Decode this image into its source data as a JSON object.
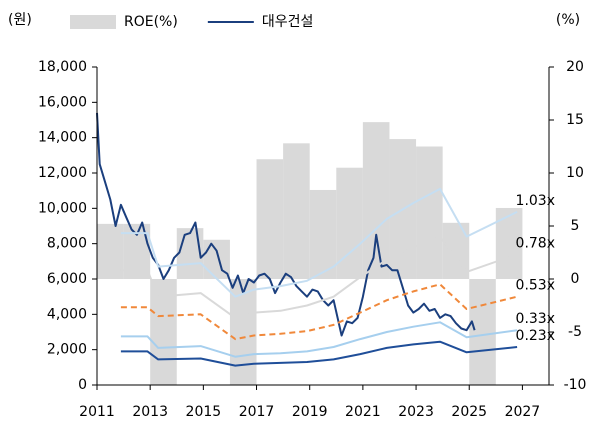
{
  "chart_data": {
    "type": "combo",
    "y_unit": "(원)",
    "y2_unit": "(%)",
    "xlim": [
      2011,
      2028
    ],
    "xticks": [
      2011,
      2013,
      2015,
      2017,
      2019,
      2021,
      2023,
      2025,
      2027
    ],
    "ylim": [
      0,
      18000
    ],
    "yticks": [
      0,
      {
        "value": 2000,
        "label": "2,000"
      },
      {
        "value": 4000,
        "label": "4,000"
      },
      {
        "value": 6000,
        "label": "6,000"
      },
      {
        "value": 8000,
        "label": "8,000"
      },
      {
        "value": 10000,
        "label": "10,000"
      },
      {
        "value": 12000,
        "label": "12,000"
      },
      {
        "value": 14000,
        "label": "14,000"
      },
      {
        "value": 16000,
        "label": "16,000"
      },
      {
        "value": 18000,
        "label": "18,000"
      }
    ],
    "y2lim": [
      -10,
      20
    ],
    "y2ticks": [
      -10,
      -5,
      0,
      5,
      10,
      15,
      20
    ],
    "series": [
      {
        "name": "ROE(%)",
        "type": "bar",
        "axis": "y2",
        "color": "#d9d9d9",
        "legend": true,
        "x": [
          2011,
          2012,
          2013,
          2014,
          2015,
          2016,
          2017,
          2018,
          2019,
          2020,
          2021,
          2022,
          2023,
          2024,
          2025,
          2026
        ],
        "values": [
          5.2,
          5.2,
          -10,
          4.8,
          3.7,
          -10,
          11.3,
          12.8,
          8.4,
          10.5,
          14.8,
          13.2,
          12.5,
          5.3,
          -10,
          6.7
        ]
      },
      {
        "name": "대우건설",
        "type": "line",
        "color": "#1b3f7e",
        "width": 2,
        "legend": true,
        "x": [
          2011.0,
          2011.1,
          2011.3,
          2011.5,
          2011.7,
          2011.9,
          2012.1,
          2012.3,
          2012.5,
          2012.7,
          2012.9,
          2013.1,
          2013.3,
          2013.5,
          2013.7,
          2013.9,
          2014.1,
          2014.3,
          2014.5,
          2014.7,
          2014.9,
          2015.1,
          2015.3,
          2015.5,
          2015.7,
          2015.9,
          2016.1,
          2016.3,
          2016.5,
          2016.7,
          2016.9,
          2017.1,
          2017.3,
          2017.5,
          2017.7,
          2017.9,
          2018.1,
          2018.3,
          2018.5,
          2018.7,
          2018.9,
          2019.1,
          2019.3,
          2019.5,
          2019.7,
          2019.9,
          2020.2,
          2020.4,
          2020.6,
          2020.8,
          2021.0,
          2021.2,
          2021.4,
          2021.5,
          2021.7,
          2021.9,
          2022.1,
          2022.3,
          2022.5,
          2022.7,
          2022.9,
          2023.1,
          2023.3,
          2023.5,
          2023.7,
          2023.9,
          2024.1,
          2024.3,
          2024.5,
          2024.7,
          2024.9,
          2025.1,
          2025.2
        ],
        "values": [
          15400,
          12500,
          11500,
          10500,
          9000,
          10200,
          9500,
          8800,
          8500,
          9200,
          8000,
          7200,
          6800,
          6000,
          6500,
          7200,
          7500,
          8500,
          8600,
          9200,
          7200,
          7500,
          8000,
          7600,
          6500,
          6300,
          5500,
          6200,
          5200,
          6000,
          5800,
          6200,
          6300,
          6000,
          5200,
          5800,
          6300,
          6100,
          5600,
          5300,
          5000,
          5400,
          5300,
          4800,
          4500,
          4800,
          2800,
          3600,
          3500,
          3800,
          5000,
          6500,
          7200,
          8500,
          6700,
          6800,
          6500,
          6500,
          5500,
          4500,
          4100,
          4300,
          4600,
          4200,
          4300,
          3800,
          4000,
          3900,
          3500,
          3200,
          3100,
          3600,
          3100
        ]
      },
      {
        "name": "1.03x",
        "type": "line",
        "color": "#c5def2",
        "width": 2,
        "x": [
          2011.9,
          2012.9,
          2013.3,
          2014.9,
          2016.2,
          2016.9,
          2017.9,
          2018.9,
          2019.9,
          2020.9,
          2021.9,
          2022.9,
          2023.9,
          2024.9,
          2026.8
        ],
        "values": [
          8600,
          8600,
          6700,
          6900,
          5000,
          5400,
          5600,
          5900,
          6700,
          8000,
          9400,
          10300,
          11100,
          8400,
          9800
        ]
      },
      {
        "name": "0.78x",
        "type": "line",
        "color": "#d9d9d9",
        "width": 2,
        "x": [
          2011.9,
          2012.9,
          2013.3,
          2014.9,
          2016.2,
          2016.9,
          2017.9,
          2018.9,
          2019.9,
          2020.9,
          2021.9,
          2022.9,
          2023.9,
          2024.9,
          2026.8
        ],
        "values": [
          6500,
          6500,
          5000,
          5200,
          3800,
          4100,
          4200,
          4500,
          5000,
          6100,
          7100,
          7800,
          8400,
          6400,
          7400
        ]
      },
      {
        "name": "0.53x",
        "type": "line",
        "color": "#f0883a",
        "width": 2,
        "dashed": true,
        "x": [
          2011.9,
          2012.9,
          2013.3,
          2014.9,
          2016.2,
          2016.9,
          2017.9,
          2018.9,
          2019.9,
          2020.9,
          2021.9,
          2022.9,
          2023.9,
          2024.9,
          2026.8
        ],
        "values": [
          4400,
          4400,
          3900,
          4000,
          2600,
          2800,
          2900,
          3050,
          3400,
          4100,
          4800,
          5300,
          5700,
          4300,
          5000
        ]
      },
      {
        "name": "0.33x",
        "type": "line",
        "color": "#a6cfee",
        "width": 2,
        "x": [
          2011.9,
          2012.9,
          2013.3,
          2014.9,
          2016.2,
          2016.9,
          2017.9,
          2018.9,
          2019.9,
          2020.9,
          2021.9,
          2022.9,
          2023.9,
          2024.9,
          2026.8
        ],
        "values": [
          2750,
          2750,
          2100,
          2200,
          1600,
          1750,
          1800,
          1900,
          2150,
          2600,
          3000,
          3300,
          3550,
          2700,
          3100
        ]
      },
      {
        "name": "0.23x",
        "type": "line",
        "color": "#1f4e99",
        "width": 2,
        "x": [
          2011.9,
          2012.9,
          2013.3,
          2014.9,
          2016.2,
          2016.9,
          2017.9,
          2018.9,
          2019.9,
          2020.9,
          2021.9,
          2022.9,
          2023.9,
          2024.9,
          2026.8
        ],
        "values": [
          1900,
          1900,
          1450,
          1500,
          1100,
          1200,
          1250,
          1300,
          1450,
          1750,
          2100,
          2300,
          2450,
          1850,
          2150
        ]
      }
    ]
  }
}
